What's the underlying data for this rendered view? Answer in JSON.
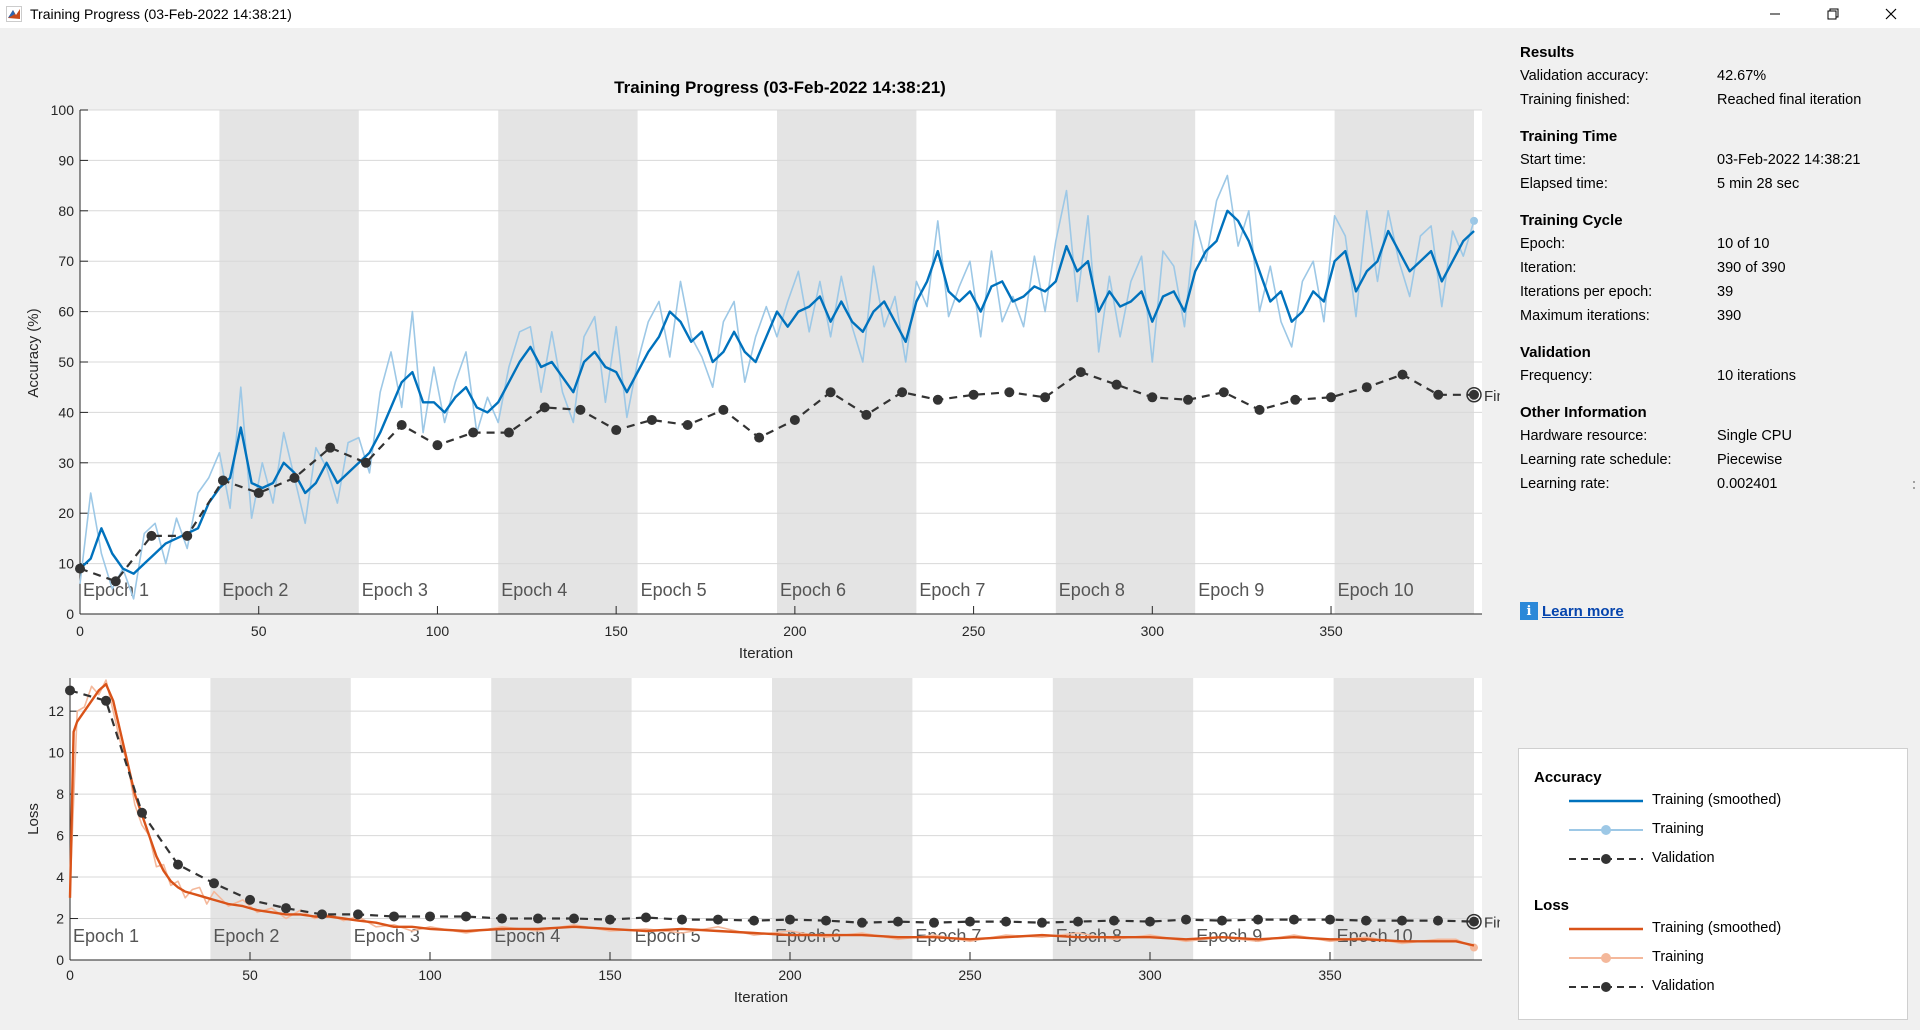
{
  "window": {
    "title": "Training Progress (03-Feb-2022 14:38:21)",
    "controls": [
      "minimize-icon",
      "restore-icon",
      "close-icon"
    ]
  },
  "plot_title": "Training Progress (03-Feb-2022 14:38:21)",
  "epoch_labels": [
    "Epoch 1",
    "Epoch 2",
    "Epoch 3",
    "Epoch 4",
    "Epoch 5",
    "Epoch 6",
    "Epoch 7",
    "Epoch 8",
    "Epoch 9",
    "Epoch 10"
  ],
  "final_marker_label": "Fina",
  "colors": {
    "accuracy_smoothed": "#0072bd",
    "accuracy_training": "#9dc8e6",
    "loss_smoothed": "#d95319",
    "loss_training": "#f4b89b",
    "validation": "#333333",
    "epoch_shade": "#e4e4e4",
    "grid": "#d8d8d8"
  },
  "chart_data": [
    {
      "type": "line",
      "ylabel": "Accuracy (%)",
      "xlabel": "Iteration",
      "xlim": [
        0,
        390
      ],
      "ylim": [
        0,
        100
      ],
      "xticks": [
        0,
        50,
        100,
        150,
        200,
        250,
        300,
        350
      ],
      "yticks": [
        0,
        10,
        20,
        30,
        40,
        50,
        60,
        70,
        80,
        90,
        100
      ],
      "epoch_boundaries": [
        0,
        39,
        78,
        117,
        156,
        195,
        234,
        273,
        312,
        351,
        390
      ],
      "series": [
        {
          "name": "Training (smoothed)",
          "style": "smoothed",
          "x": [
            0,
            3,
            6,
            9,
            12,
            15,
            18,
            21,
            24,
            27,
            30,
            33,
            36,
            39,
            42,
            45,
            48,
            51,
            54,
            57,
            60,
            63,
            66,
            69,
            72,
            75,
            78,
            81,
            84,
            87,
            90,
            93,
            96,
            99,
            102,
            105,
            108,
            111,
            114,
            117,
            120,
            123,
            126,
            129,
            132,
            135,
            138,
            141,
            144,
            147,
            150,
            153,
            156,
            159,
            162,
            165,
            168,
            171,
            174,
            177,
            180,
            183,
            186,
            189,
            192,
            195,
            198,
            201,
            204,
            207,
            210,
            213,
            216,
            219,
            222,
            225,
            228,
            231,
            234,
            237,
            240,
            243,
            246,
            249,
            252,
            255,
            258,
            261,
            264,
            267,
            270,
            273,
            276,
            279,
            282,
            285,
            288,
            291,
            294,
            297,
            300,
            303,
            306,
            309,
            312,
            315,
            318,
            321,
            324,
            327,
            330,
            333,
            336,
            339,
            342,
            345,
            348,
            351,
            354,
            357,
            360,
            363,
            366,
            369,
            372,
            375,
            378,
            381,
            384,
            387,
            390
          ],
          "y": [
            9,
            11,
            17,
            12,
            9,
            8,
            10,
            12,
            14,
            15,
            16,
            17,
            22,
            25,
            27,
            37,
            26,
            25,
            26,
            30,
            28,
            24,
            26,
            30,
            26,
            28,
            30,
            32,
            36,
            41,
            46,
            48,
            42,
            42,
            40,
            43,
            45,
            41,
            40,
            42,
            46,
            50,
            53,
            49,
            50,
            47,
            44,
            50,
            52,
            49,
            48,
            44,
            48,
            52,
            55,
            60,
            58,
            54,
            56,
            50,
            52,
            56,
            52,
            50,
            55,
            60,
            57,
            60,
            61,
            63,
            58,
            62,
            58,
            56,
            60,
            62,
            58,
            54,
            62,
            66,
            72,
            64,
            62,
            64,
            60,
            65,
            66,
            62,
            63,
            65,
            64,
            66,
            73,
            68,
            70,
            60,
            64,
            61,
            62,
            64,
            58,
            63,
            64,
            60,
            68,
            72,
            74,
            80,
            78,
            74,
            68,
            62,
            64,
            58,
            60,
            64,
            62,
            70,
            72,
            64,
            68,
            70,
            76,
            72,
            68,
            70,
            72,
            66,
            70,
            74,
            76
          ]
        },
        {
          "name": "Training",
          "style": "raw",
          "x": [
            0,
            3,
            6,
            9,
            12,
            15,
            18,
            21,
            24,
            27,
            30,
            33,
            36,
            39,
            42,
            45,
            48,
            51,
            54,
            57,
            60,
            63,
            66,
            69,
            72,
            75,
            78,
            81,
            84,
            87,
            90,
            93,
            96,
            99,
            102,
            105,
            108,
            111,
            114,
            117,
            120,
            123,
            126,
            129,
            132,
            135,
            138,
            141,
            144,
            147,
            150,
            153,
            156,
            159,
            162,
            165,
            168,
            171,
            174,
            177,
            180,
            183,
            186,
            189,
            192,
            195,
            198,
            201,
            204,
            207,
            210,
            213,
            216,
            219,
            222,
            225,
            228,
            231,
            234,
            237,
            240,
            243,
            246,
            249,
            252,
            255,
            258,
            261,
            264,
            267,
            270,
            273,
            276,
            279,
            282,
            285,
            288,
            291,
            294,
            297,
            300,
            303,
            306,
            309,
            312,
            315,
            318,
            321,
            324,
            327,
            330,
            333,
            336,
            339,
            342,
            345,
            348,
            351,
            354,
            357,
            360,
            363,
            366,
            369,
            372,
            375,
            378,
            381,
            384,
            387,
            390
          ],
          "y": [
            6,
            24,
            12,
            5,
            9,
            3,
            16,
            18,
            10,
            19,
            13,
            24,
            27,
            32,
            21,
            45,
            19,
            30,
            22,
            36,
            27,
            18,
            33,
            29,
            22,
            34,
            35,
            28,
            44,
            52,
            41,
            60,
            36,
            49,
            38,
            46,
            52,
            36,
            43,
            38,
            49,
            56,
            57,
            44,
            56,
            44,
            38,
            55,
            59,
            42,
            57,
            39,
            50,
            58,
            62,
            51,
            66,
            55,
            51,
            45,
            58,
            62,
            46,
            55,
            61,
            55,
            62,
            68,
            56,
            66,
            55,
            67,
            57,
            50,
            69,
            57,
            63,
            50,
            66,
            61,
            78,
            59,
            65,
            70,
            55,
            72,
            58,
            63,
            57,
            71,
            60,
            74,
            84,
            62,
            79,
            52,
            67,
            55,
            66,
            71,
            50,
            72,
            69,
            57,
            78,
            70,
            82,
            87,
            73,
            80,
            60,
            69,
            58,
            53,
            66,
            70,
            58,
            79,
            75,
            59,
            80,
            66,
            80,
            70,
            63,
            75,
            77,
            61,
            76,
            71,
            78
          ]
        },
        {
          "name": "Validation",
          "style": "validation",
          "x": [
            0,
            10,
            20,
            30,
            40,
            50,
            60,
            70,
            80,
            90,
            100,
            110,
            120,
            130,
            140,
            150,
            160,
            170,
            180,
            190,
            200,
            210,
            220,
            230,
            240,
            250,
            260,
            270,
            280,
            290,
            300,
            310,
            320,
            330,
            340,
            350,
            360,
            370,
            380,
            390
          ],
          "y": [
            9,
            6.5,
            15.5,
            15.5,
            26.5,
            24,
            27,
            33,
            30,
            37.5,
            33.5,
            36,
            36,
            41,
            40.5,
            36.5,
            38.5,
            37.5,
            40.5,
            35,
            38.5,
            44,
            39.5,
            44,
            42.5,
            43.5,
            44,
            43,
            48,
            45.5,
            43,
            42.5,
            44,
            40.5,
            42.5,
            43,
            45,
            47.5,
            43.5,
            43.5
          ]
        }
      ]
    },
    {
      "type": "line",
      "ylabel": "Loss",
      "xlabel": "Iteration",
      "xlim": [
        0,
        390
      ],
      "ylim": [
        0,
        13.6
      ],
      "xticks": [
        0,
        50,
        100,
        150,
        200,
        250,
        300,
        350
      ],
      "yticks": [
        0,
        2,
        4,
        6,
        8,
        10,
        12
      ],
      "epoch_boundaries": [
        0,
        39,
        78,
        117,
        156,
        195,
        234,
        273,
        312,
        351,
        390
      ],
      "series": [
        {
          "name": "Training (smoothed)",
          "style": "smoothed",
          "x": [
            0,
            1,
            2,
            4,
            6,
            8,
            10,
            12,
            14,
            16,
            18,
            20,
            22,
            24,
            26,
            28,
            30,
            32,
            34,
            36,
            38,
            40,
            44,
            48,
            52,
            56,
            60,
            64,
            68,
            72,
            76,
            80,
            85,
            90,
            95,
            100,
            110,
            120,
            130,
            140,
            150,
            160,
            170,
            180,
            190,
            200,
            210,
            220,
            230,
            240,
            250,
            260,
            270,
            280,
            290,
            300,
            310,
            320,
            330,
            340,
            350,
            360,
            370,
            380,
            385,
            390
          ],
          "y": [
            3,
            11,
            11.5,
            12,
            12.5,
            13,
            13.3,
            12.5,
            11,
            9.5,
            8,
            7,
            6,
            5,
            4.3,
            3.8,
            3.5,
            3.3,
            3.2,
            3.1,
            3,
            2.9,
            2.7,
            2.6,
            2.4,
            2.3,
            2.2,
            2.2,
            2.1,
            2.1,
            2,
            1.9,
            1.8,
            1.6,
            1.6,
            1.5,
            1.4,
            1.5,
            1.5,
            1.6,
            1.5,
            1.4,
            1.5,
            1.4,
            1.3,
            1.2,
            1.2,
            1.2,
            1.1,
            1.1,
            1,
            1.1,
            1.2,
            1.1,
            1.1,
            1.1,
            1,
            1.1,
            1,
            1.1,
            1,
            1,
            0.9,
            0.9,
            0.9,
            0.7
          ]
        },
        {
          "name": "Training",
          "style": "raw",
          "x": [
            0,
            2,
            4,
            6,
            8,
            10,
            12,
            14,
            16,
            18,
            20,
            22,
            24,
            26,
            28,
            30,
            32,
            34,
            36,
            38,
            40,
            44,
            48,
            52,
            56,
            60,
            64,
            68,
            72,
            76,
            80,
            85,
            90,
            95,
            100,
            110,
            120,
            130,
            140,
            150,
            160,
            170,
            180,
            190,
            200,
            210,
            220,
            230,
            240,
            250,
            260,
            270,
            280,
            290,
            300,
            310,
            320,
            330,
            340,
            350,
            360,
            370,
            380,
            385,
            390
          ],
          "y": [
            3.3,
            12,
            12.2,
            13.2,
            12.8,
            13.5,
            12,
            10.5,
            9.5,
            7.5,
            6.5,
            6,
            4.5,
            4.6,
            3.6,
            3.8,
            3,
            3.4,
            3.5,
            2.7,
            3.3,
            2.6,
            2.9,
            2.3,
            2.5,
            2,
            2.4,
            2,
            2.2,
            1.9,
            2.1,
            1.6,
            1.7,
            1.4,
            1.6,
            1.3,
            1.6,
            1.4,
            1.7,
            1.4,
            1.5,
            1.3,
            1.6,
            1.2,
            1.4,
            1.1,
            1.3,
            1,
            1.2,
            0.9,
            1.2,
            1.1,
            1.3,
            1,
            1.2,
            0.9,
            1.1,
            0.9,
            1.2,
            0.9,
            1.1,
            0.8,
            1,
            1,
            0.6
          ]
        },
        {
          "name": "Validation",
          "style": "validation",
          "x": [
            0,
            10,
            20,
            30,
            40,
            50,
            60,
            70,
            80,
            90,
            100,
            110,
            120,
            130,
            140,
            150,
            160,
            170,
            180,
            190,
            200,
            210,
            220,
            230,
            240,
            250,
            260,
            270,
            280,
            290,
            300,
            310,
            320,
            330,
            340,
            350,
            360,
            370,
            380,
            390
          ],
          "y": [
            13,
            12.5,
            7.1,
            4.6,
            3.7,
            2.9,
            2.5,
            2.2,
            2.2,
            2.1,
            2.1,
            2.1,
            2,
            2,
            2,
            1.95,
            2.05,
            1.95,
            1.95,
            1.9,
            1.95,
            1.9,
            1.8,
            1.85,
            1.8,
            1.85,
            1.85,
            1.8,
            1.85,
            1.9,
            1.85,
            1.95,
            1.9,
            1.95,
            1.95,
            1.95,
            1.9,
            1.9,
            1.9,
            1.85
          ]
        }
      ]
    }
  ],
  "panel": {
    "results": {
      "title": "Results",
      "validation_accuracy_label": "Validation accuracy:",
      "validation_accuracy_value": "42.67%",
      "training_finished_label": "Training finished:",
      "training_finished_value": "Reached final iteration"
    },
    "training_time": {
      "title": "Training Time",
      "start_label": "Start time:",
      "start_value": "03-Feb-2022 14:38:21",
      "elapsed_label": "Elapsed time:",
      "elapsed_value": "5 min 28 sec"
    },
    "training_cycle": {
      "title": "Training Cycle",
      "epoch_label": "Epoch:",
      "epoch_value": "10 of 10",
      "iteration_label": "Iteration:",
      "iteration_value": "390 of 390",
      "ipe_label": "Iterations per epoch:",
      "ipe_value": "39",
      "maxit_label": "Maximum iterations:",
      "maxit_value": "390"
    },
    "validation": {
      "title": "Validation",
      "freq_label": "Frequency:",
      "freq_value": "10 iterations"
    },
    "other": {
      "title": "Other Information",
      "hw_label": "Hardware resource:",
      "hw_value": "Single CPU",
      "lrs_label": "Learning rate schedule:",
      "lrs_value": "Piecewise",
      "lr_label": "Learning rate:",
      "lr_value": "0.002401"
    },
    "learn_more": "Learn more",
    "info_glyph": "i"
  },
  "legend": {
    "accuracy_title": "Accuracy",
    "loss_title": "Loss",
    "smoothed": "Training (smoothed)",
    "training": "Training",
    "validation": "Validation"
  }
}
